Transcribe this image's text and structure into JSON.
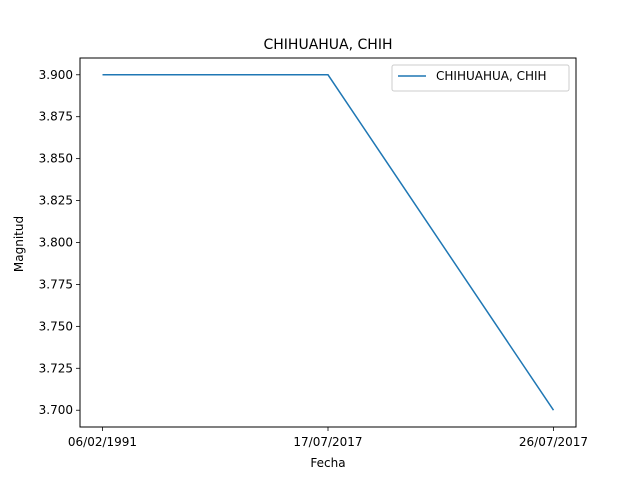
{
  "chart_data": {
    "type": "line",
    "title": "CHIHUAHUA, CHIH",
    "xlabel": "Fecha",
    "ylabel": "Magnitud",
    "categories": [
      "06/02/1991",
      "17/07/2017",
      "26/07/2017"
    ],
    "series": [
      {
        "name": "CHIHUAHUA, CHIH",
        "values": [
          3.9,
          3.9,
          3.7
        ],
        "color": "#1f77b4"
      }
    ],
    "ylim": [
      3.69,
      3.91
    ],
    "yticks": [
      3.7,
      3.725,
      3.75,
      3.775,
      3.8,
      3.825,
      3.85,
      3.875,
      3.9
    ],
    "ytick_labels": [
      "3.700",
      "3.725",
      "3.750",
      "3.775",
      "3.800",
      "3.825",
      "3.850",
      "3.875",
      "3.900"
    ],
    "grid": false,
    "legend_position": "top-right"
  }
}
